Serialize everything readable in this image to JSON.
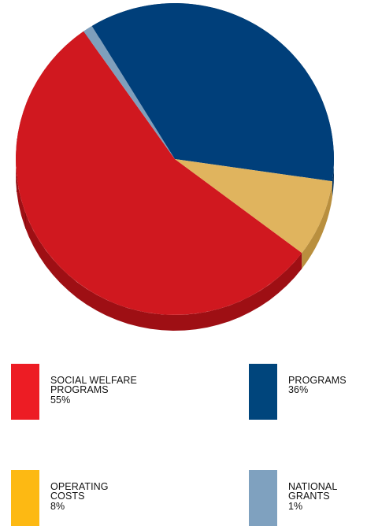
{
  "chart_data": {
    "type": "pie",
    "slices": [
      {
        "label": "SOCIAL WELFARE\nPROGRAMS",
        "value": 55,
        "value_label": "55%",
        "color": "#D0181F",
        "side_color": "#9E0F14"
      },
      {
        "label": "PROGRAMS",
        "value": 36,
        "value_label": "36%",
        "color": "#003F7A",
        "side_color": "#00305E"
      },
      {
        "label": "OPERATING\nCOSTS",
        "value": 8,
        "value_label": "8%",
        "color": "#E0B45E",
        "side_color": "#B98F3E"
      },
      {
        "label": "NATIONAL\nGRANTS",
        "value": 1,
        "value_label": "1%",
        "color": "#7F9FBC",
        "side_color": "#5F7E9A"
      }
    ],
    "legend_colors": [
      "#ED1C24",
      "#00457C",
      "#FDB913",
      "#7FA1BF"
    ],
    "legend_placement": "bottom"
  }
}
